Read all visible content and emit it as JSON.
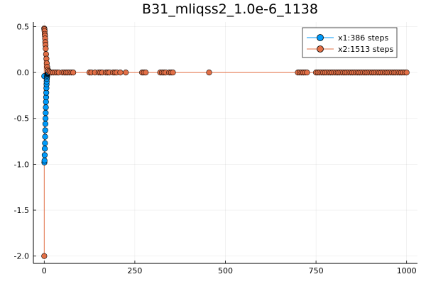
{
  "chart_data": {
    "type": "scatter",
    "title": "B31_mliqss2_1.0e-6_1138",
    "xlabel": "",
    "ylabel": "",
    "xlim": [
      -30,
      1030
    ],
    "ylim": [
      -2.08,
      0.55
    ],
    "xticks": [
      0,
      250,
      500,
      750,
      1000
    ],
    "xtick_labels": [
      "0",
      "250",
      "500",
      "750",
      "1000"
    ],
    "yticks": [
      0.5,
      0.0,
      -0.5,
      -1.0,
      -1.5,
      -2.0
    ],
    "ytick_labels": [
      "0.5",
      "0.0",
      "-0.5",
      "-1.0",
      "-1.5",
      "-2.0"
    ],
    "grid": true,
    "legend_position": "top-right",
    "series": [
      {
        "name": "x1:386 steps",
        "color": "#009AFA",
        "x": [
          0.0,
          0.4,
          0.8,
          1.2,
          1.6,
          2.0,
          2.4,
          2.8,
          3.2,
          3.6,
          4.0,
          4.4,
          4.8,
          5.2,
          5.6,
          6.0,
          6.4,
          6.8,
          7.2,
          7.6,
          8.0,
          8.5,
          9.0,
          9.5,
          10.0,
          11.0,
          12.0
        ],
        "y": [
          -0.04,
          -0.98,
          -0.96,
          -0.9,
          -0.83,
          -0.77,
          -0.7,
          -0.63,
          -0.56,
          -0.5,
          -0.44,
          -0.38,
          -0.32,
          -0.27,
          -0.22,
          -0.17,
          -0.13,
          -0.1,
          -0.07,
          -0.05,
          -0.035,
          -0.025,
          -0.015,
          -0.01,
          -0.006,
          -0.003,
          0.0
        ]
      },
      {
        "name": "x2:1513 steps",
        "color": "#E26F46",
        "x": [
          0.0,
          0.0,
          0.5,
          1.0,
          1.5,
          2.0,
          2.5,
          3.0,
          3.5,
          4.0,
          5.0,
          6.0,
          7.0,
          8.0,
          10.0,
          12.0,
          15.0,
          20.0,
          25.0,
          30.0,
          35.0,
          40.0,
          50.0,
          55.0,
          60.0,
          65.0,
          70.0,
          75.0,
          80.0,
          125.0,
          130.0,
          140.0,
          150.0,
          155.0,
          160.0,
          170.0,
          175.0,
          180.0,
          190.0,
          195.0,
          200.0,
          210.0,
          225.0,
          270.0,
          275.0,
          280.0,
          320.0,
          325.0,
          330.0,
          335.0,
          345.0,
          350.0,
          355.0,
          455.0,
          700.0,
          705.0,
          710.0,
          715.0,
          720.0,
          725.0,
          750.0,
          755.0,
          760.0,
          765.0,
          770.0,
          775.0,
          780.0,
          785.0,
          790.0,
          795.0,
          800.0,
          805.0,
          810.0,
          815.0,
          820.0,
          825.0,
          830.0,
          835.0,
          840.0,
          845.0,
          850.0,
          855.0,
          860.0,
          865.0,
          870.0,
          875.0,
          880.0,
          885.0,
          890.0,
          895.0,
          900.0,
          905.0,
          910.0,
          915.0,
          920.0,
          925.0,
          930.0,
          935.0,
          940.0,
          945.0,
          950.0,
          955.0,
          960.0,
          965.0,
          970.0,
          975.0,
          980.0,
          985.0,
          990.0,
          995.0,
          1000.0
        ],
        "y": [
          -2.0,
          0.48,
          0.47,
          0.45,
          0.42,
          0.4,
          0.37,
          0.33,
          0.3,
          0.26,
          0.2,
          0.15,
          0.1,
          0.06,
          0.03,
          0.015,
          0.005,
          0.0,
          0.0,
          0.0,
          0.0,
          0.0,
          0.0,
          0.0,
          0.0,
          0.0,
          0.0,
          0.0,
          0.0,
          0.0,
          0.0,
          0.0,
          0.0,
          0.0,
          0.0,
          0.0,
          0.0,
          0.0,
          0.0,
          0.0,
          0.0,
          0.0,
          0.0,
          0.0,
          0.0,
          0.0,
          0.0,
          0.0,
          0.0,
          0.0,
          0.0,
          0.0,
          0.0,
          0.0,
          0.0,
          0.0,
          0.0,
          0.0,
          0.0,
          0.0,
          0.0,
          0.0,
          0.0,
          0.0,
          0.0,
          0.0,
          0.0,
          0.0,
          0.0,
          0.0,
          0.0,
          0.0,
          0.0,
          0.0,
          0.0,
          0.0,
          0.0,
          0.0,
          0.0,
          0.0,
          0.0,
          0.0,
          0.0,
          0.0,
          0.0,
          0.0,
          0.0,
          0.0,
          0.0,
          0.0,
          0.0,
          0.0,
          0.0,
          0.0,
          0.0,
          0.0,
          0.0,
          0.0,
          0.0,
          0.0,
          0.0,
          0.0,
          0.0,
          0.0,
          0.0,
          0.0,
          0.0,
          0.0,
          0.0,
          0.0,
          0.0
        ]
      }
    ]
  }
}
